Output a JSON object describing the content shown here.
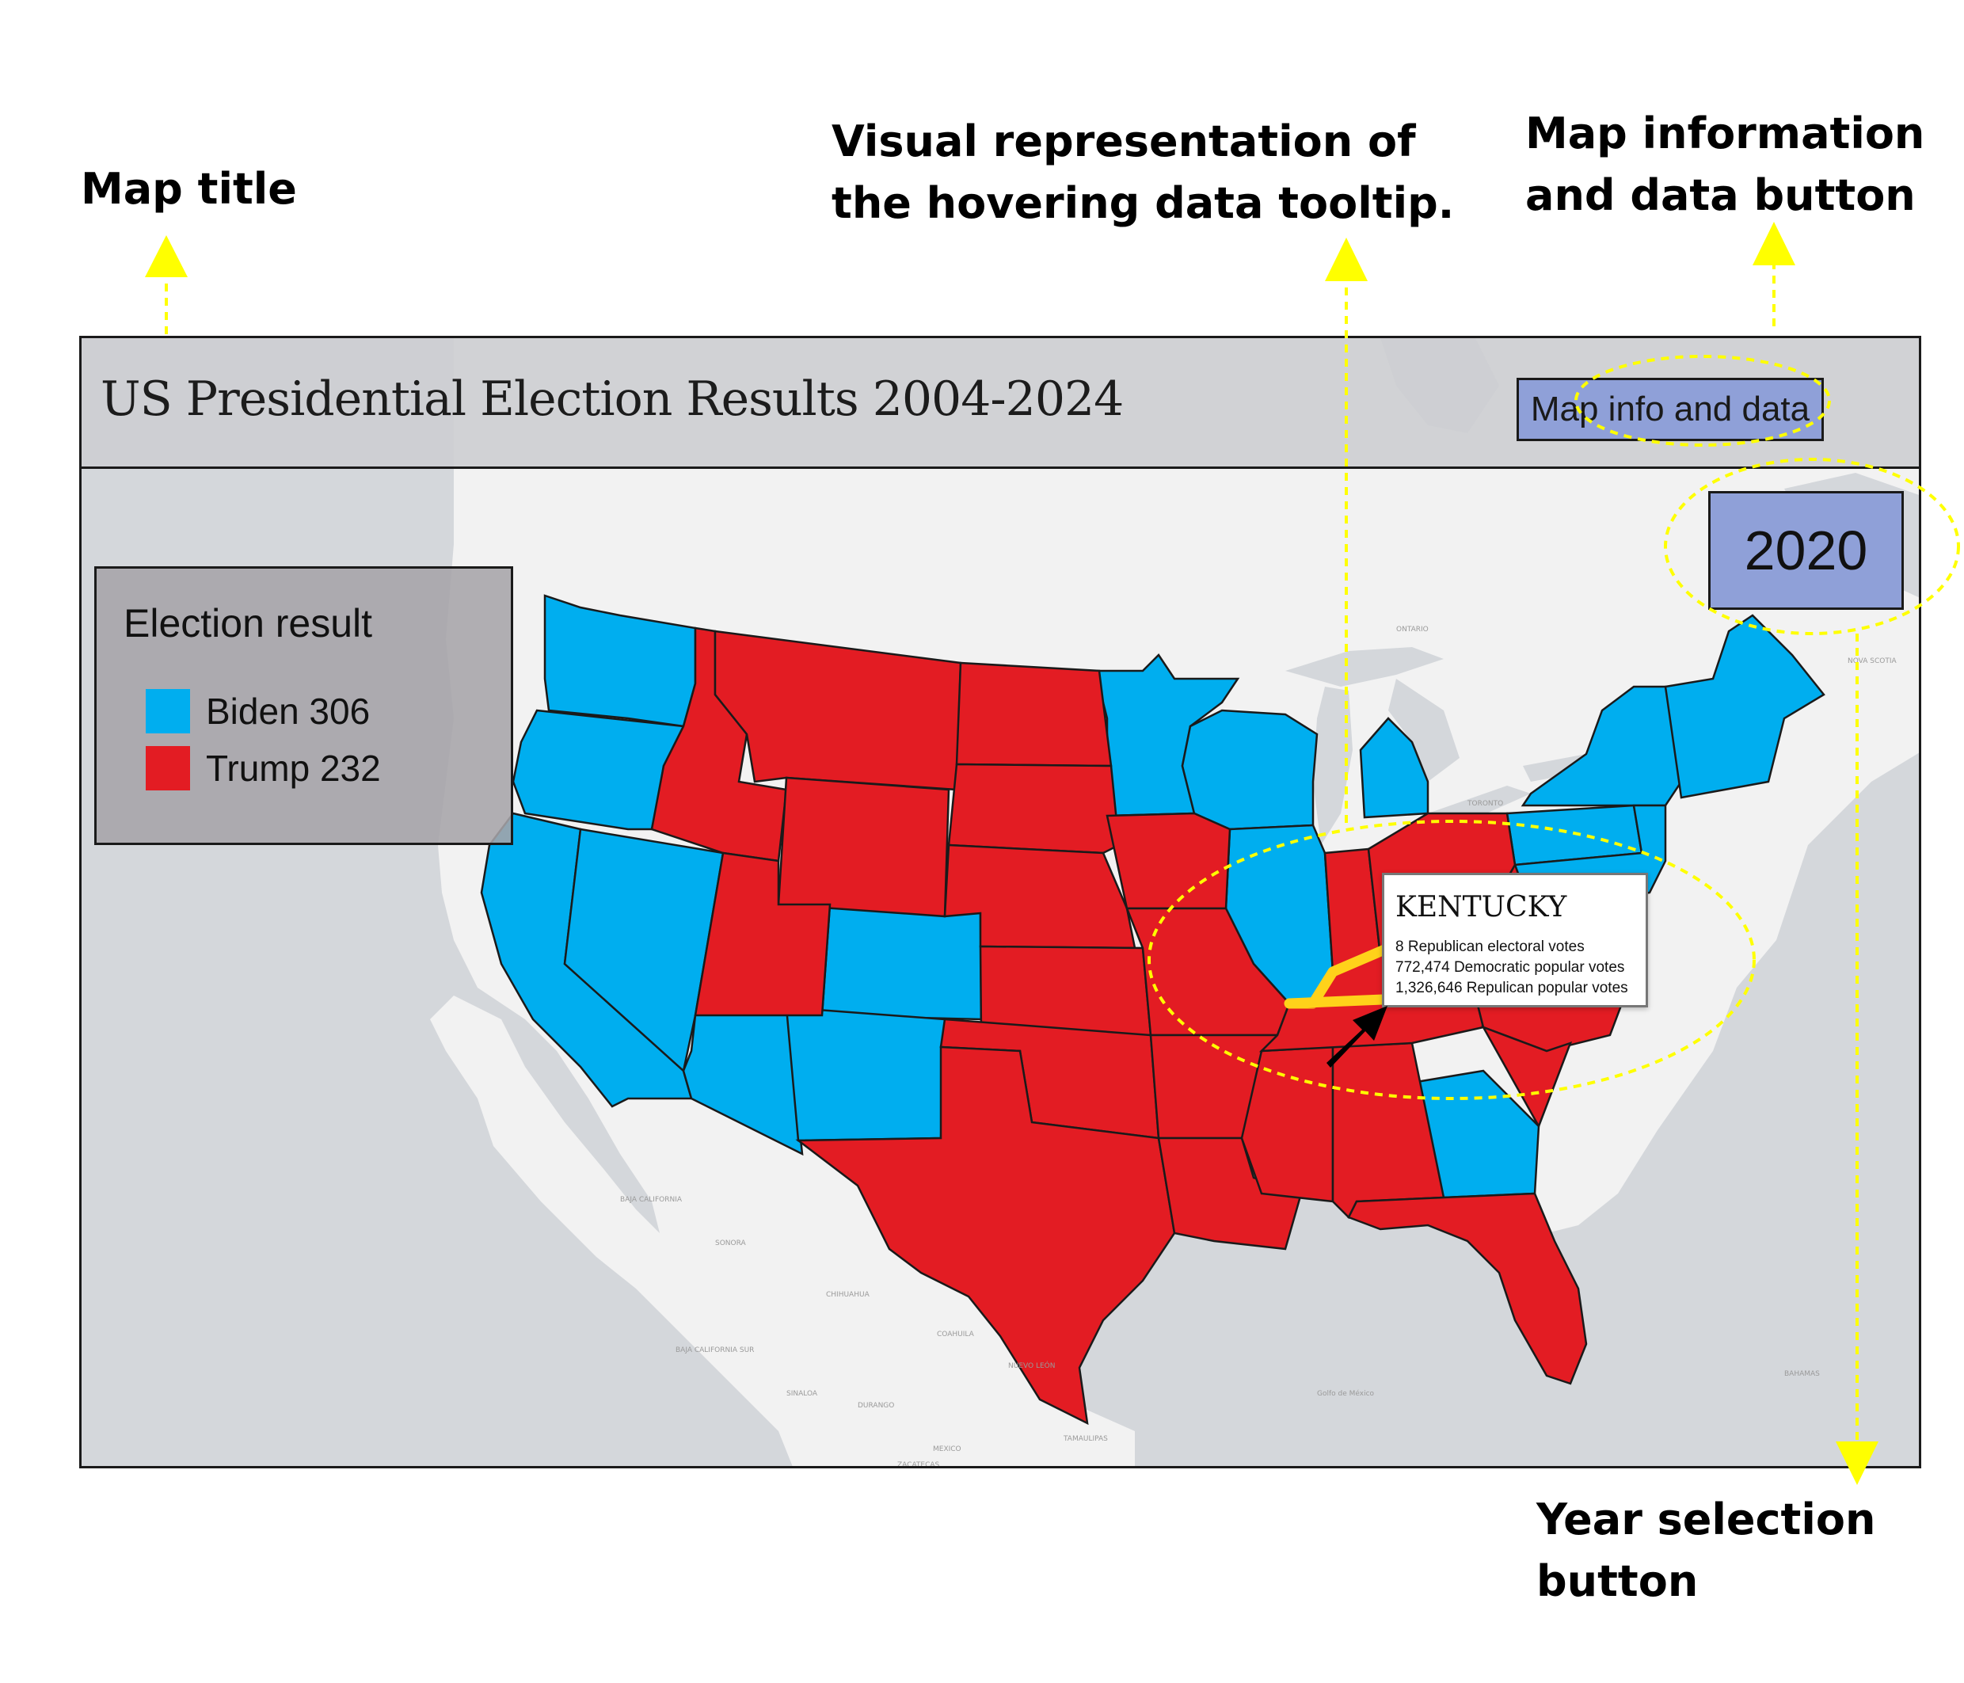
{
  "callouts": {
    "map_title": [
      "Map title"
    ],
    "tooltip": [
      "Visual representation of",
      "the hovering data tooltip."
    ],
    "info_button": [
      "Map information",
      "and data button"
    ],
    "year_button": [
      "Year selection",
      "button"
    ]
  },
  "map": {
    "title": "US Presidential Election Results 2004-2024",
    "info_button_label": "Map info and data",
    "year": "2020"
  },
  "legend": {
    "title": "Election result",
    "items": [
      {
        "label": "Biden 306",
        "color": "#00aeef",
        "party": "democratic"
      },
      {
        "label": "Trump 232",
        "color": "#e31c23",
        "party": "republican"
      }
    ]
  },
  "tooltip": {
    "state": "KENTUCKY",
    "lines": [
      "8 Republican electoral votes",
      "772,474 Democratic popular votes",
      "1,326,646 Repulican popular votes"
    ]
  },
  "highlighted_state": "Kentucky",
  "state_results": {
    "democratic": [
      "Washington",
      "Oregon",
      "California",
      "Nevada",
      "Arizona",
      "Colorado",
      "New Mexico",
      "Minnesota",
      "Wisconsin",
      "Michigan",
      "Illinois",
      "Virginia",
      "Pennsylvania",
      "New York",
      "Georgia",
      "Maine",
      "New Hampshire",
      "Vermont",
      "Massachusetts",
      "Connecticut",
      "Rhode Island",
      "New Jersey",
      "Delaware",
      "Maryland"
    ],
    "republican": [
      "Idaho",
      "Montana",
      "Wyoming",
      "Utah",
      "North Dakota",
      "South Dakota",
      "Nebraska",
      "Kansas",
      "Oklahoma",
      "Texas",
      "Iowa",
      "Missouri",
      "Arkansas",
      "Louisiana",
      "Mississippi",
      "Alabama",
      "Tennessee",
      "Kentucky",
      "Indiana",
      "Ohio",
      "West Virginia",
      "North Carolina",
      "South Carolina",
      "Florida"
    ]
  },
  "basemap_labels": [
    "BAJA CALIFORNIA",
    "SONORA",
    "CHIHUAHUA",
    "COAHUILA",
    "NUEVO LEÓN",
    "SINALOA",
    "DURANGO",
    "TAMAULIPAS",
    "MEXICO",
    "ZACATECAS",
    "BAJA CALIFORNIA SUR",
    "Golfo de México",
    "ONTARIO",
    "TORONTO",
    "NOVA SCOTIA",
    "BAHAMAS"
  ],
  "colors": {
    "democratic": "#00aeef",
    "republican": "#e31c23",
    "button": "#8fa0d8",
    "annotation": "#ffff00",
    "highlight": "#ffd21a"
  }
}
